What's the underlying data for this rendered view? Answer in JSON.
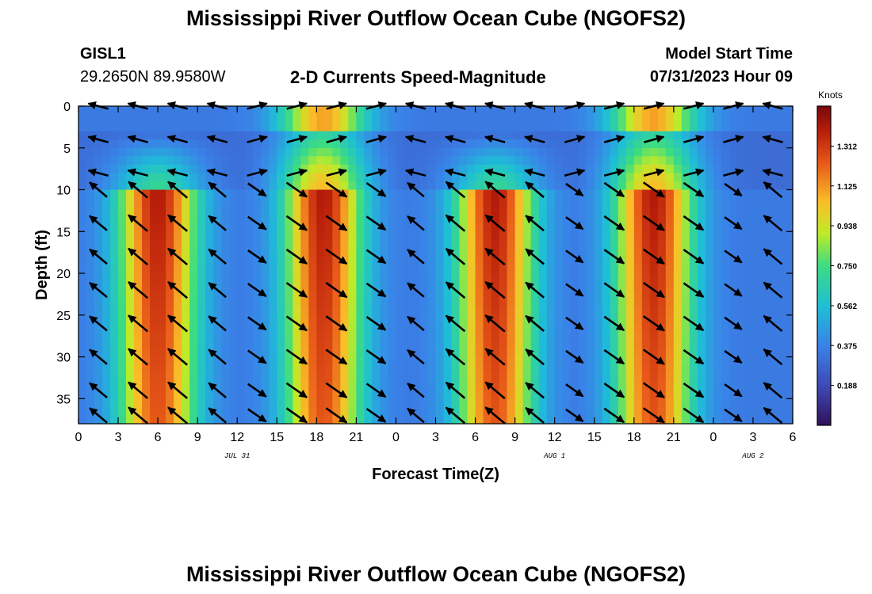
{
  "page": {
    "title": "Mississippi River Outflow Ocean Cube (NGOFS2)",
    "title_repeat": "Mississippi River Outflow Ocean Cube (NGOFS2)"
  },
  "station": {
    "id": "GISL1",
    "coords": "29.2650N  89.9580W"
  },
  "product": "2-D Currents Speed-Magnitude",
  "model": {
    "label": "Model Start Time",
    "value": "07/31/2023 Hour 09"
  },
  "chart_data": {
    "type": "heatmap",
    "subtype": "depth-time section with current vectors",
    "xlabel": "Forecast Time(Z)",
    "ylabel": "Depth (ft)",
    "x_unit": "hours since 07/31 00Z",
    "xlim": [
      0,
      54
    ],
    "ylim": [
      38,
      0
    ],
    "x_ticks": [
      0,
      3,
      6,
      9,
      12,
      15,
      18,
      21,
      24,
      27,
      30,
      33,
      36,
      39,
      42,
      45,
      48,
      51,
      54
    ],
    "x_tick_labels": [
      "0",
      "3",
      "6",
      "9",
      "12",
      "15",
      "18",
      "21",
      "0",
      "3",
      "6",
      "9",
      "12",
      "15",
      "18",
      "21",
      "0",
      "3",
      "6"
    ],
    "y_ticks": [
      0,
      5,
      10,
      15,
      20,
      25,
      30,
      35
    ],
    "y_tick_labels": [
      "0",
      "5",
      "10",
      "15",
      "20",
      "25",
      "30",
      "35"
    ],
    "date_labels": [
      {
        "text": "JUL 31",
        "x": 12
      },
      {
        "text": "AUG 1",
        "x": 36
      },
      {
        "text": "AUG 2",
        "x": 51
      }
    ],
    "colorbar": {
      "title": "Knots",
      "range": [
        0.0,
        1.5
      ],
      "ticks": [
        0.188,
        0.375,
        0.562,
        0.75,
        0.938,
        1.125,
        1.312
      ],
      "tick_labels": [
        "0.188",
        "0.375",
        "0.562",
        "0.750",
        "0.938",
        "1.125",
        "1.312"
      ]
    },
    "speed_pattern": {
      "surface_maxima_hours": [
        18.5,
        43.5
      ],
      "lower_layer_maxima_hours": [
        6,
        18.5,
        31.5,
        43.5
      ],
      "lower_layer_top_ft": 10,
      "low_speed_band_ft": [
        3,
        8
      ],
      "peak_speed_knots": 1.4
    },
    "vector_rows_ft": [
      0,
      4,
      8,
      10,
      14,
      18,
      22,
      26,
      30,
      34,
      37
    ],
    "vector_cols_hours": [
      1.5,
      4.5,
      7.5,
      10.5,
      13.5,
      16.5,
      19.5,
      22.5,
      25.5,
      28.5,
      31.5,
      34.5,
      37.5,
      40.5,
      43.5,
      46.5,
      49.5,
      52.5
    ],
    "legend_position": "right colorbar",
    "grid": false
  }
}
